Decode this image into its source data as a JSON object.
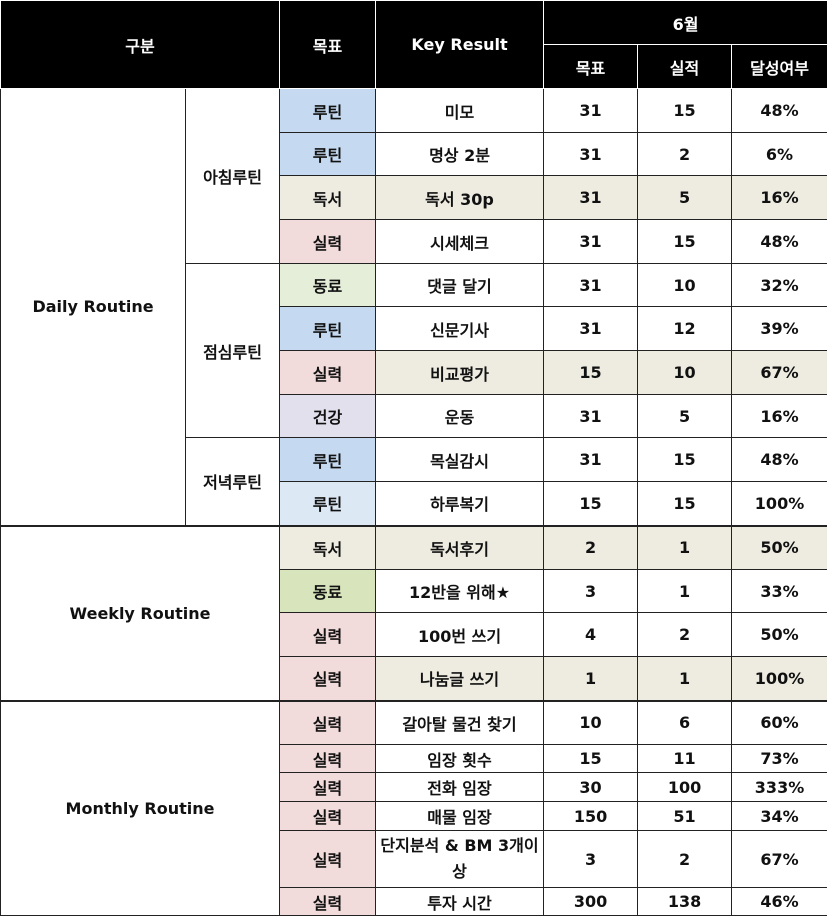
{
  "header": {
    "category": "구분",
    "goal": "목표",
    "key_result": "Key Result",
    "month": "6월",
    "target": "목표",
    "actual": "실적",
    "achievement": "달성여부"
  },
  "groups": {
    "daily": "Daily Routine",
    "weekly": "Weekly Routine",
    "monthly": "Monthly Routine"
  },
  "subgroups": {
    "morning": "아침루틴",
    "lunch": "점심루틴",
    "evening": "저녁루틴"
  },
  "rows": [
    {
      "cat": "루틴",
      "kr": "미모",
      "target": "31",
      "actual": "15",
      "rate": "48%"
    },
    {
      "cat": "루틴",
      "kr": "명상 2분",
      "target": "31",
      "actual": "2",
      "rate": "6%"
    },
    {
      "cat": "독서",
      "kr": "독서 30p",
      "target": "31",
      "actual": "5",
      "rate": "16%"
    },
    {
      "cat": "실력",
      "kr": "시세체크",
      "target": "31",
      "actual": "15",
      "rate": "48%"
    },
    {
      "cat": "동료",
      "kr": "댓글 달기",
      "target": "31",
      "actual": "10",
      "rate": "32%"
    },
    {
      "cat": "루틴",
      "kr": "신문기사",
      "target": "31",
      "actual": "12",
      "rate": "39%"
    },
    {
      "cat": "실력",
      "kr": "비교평가",
      "target": "15",
      "actual": "10",
      "rate": "67%"
    },
    {
      "cat": "건강",
      "kr": "운동",
      "target": "31",
      "actual": "5",
      "rate": "16%"
    },
    {
      "cat": "루틴",
      "kr": "목실감시",
      "target": "31",
      "actual": "15",
      "rate": "48%"
    },
    {
      "cat": "루틴",
      "kr": "하루복기",
      "target": "15",
      "actual": "15",
      "rate": "100%"
    },
    {
      "cat": "독서",
      "kr": "독서후기",
      "target": "2",
      "actual": "1",
      "rate": "50%"
    },
    {
      "cat": "동료",
      "kr": "12반을 위해★",
      "target": "3",
      "actual": "1",
      "rate": "33%"
    },
    {
      "cat": "실력",
      "kr": "100번 쓰기",
      "target": "4",
      "actual": "2",
      "rate": "50%"
    },
    {
      "cat": "실력",
      "kr": "나눔글 쓰기",
      "target": "1",
      "actual": "1",
      "rate": "100%"
    },
    {
      "cat": "실력",
      "kr": "갈아탈 물건 찾기",
      "target": "10",
      "actual": "6",
      "rate": "60%"
    },
    {
      "cat": "실력",
      "kr": "임장 횟수",
      "target": "15",
      "actual": "11",
      "rate": "73%"
    },
    {
      "cat": "실력",
      "kr": "전화 임장",
      "target": "30",
      "actual": "100",
      "rate": "333%"
    },
    {
      "cat": "실력",
      "kr": "매물 임장",
      "target": "150",
      "actual": "51",
      "rate": "34%"
    },
    {
      "cat": "실력",
      "kr": "단지분석 & BM 3개이상",
      "target": "3",
      "actual": "2",
      "rate": "67%"
    },
    {
      "cat": "실력",
      "kr": "투자 시간",
      "target": "300",
      "actual": "138",
      "rate": "46%"
    }
  ],
  "colors": {
    "header_bg": "#000000",
    "routine_blue": "#c5d9f0",
    "reading_beige": "#eeece1",
    "skill_pink": "#f2dbdb",
    "peer_green": "#e5eed8",
    "health_lavender": "#e3e0ee"
  }
}
